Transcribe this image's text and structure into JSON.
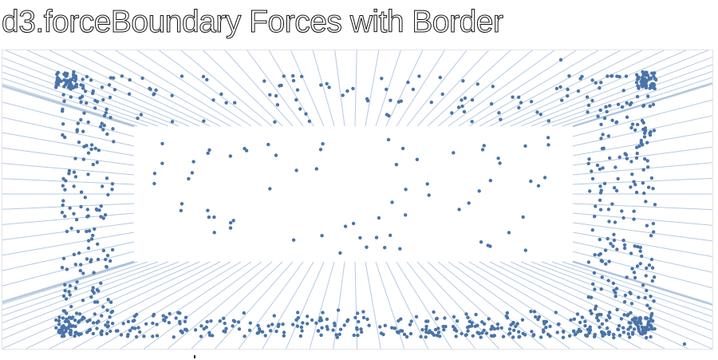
{
  "page": {
    "title": "d3.forceBoundary Forces with Border"
  },
  "visualization": {
    "layout_name": "force-boundary-field",
    "node_color": "#4a74a8",
    "force_line_color": "#a9bfdc",
    "frame_border_color": "#e4e4e4",
    "background_color": "#ffffff"
  }
}
